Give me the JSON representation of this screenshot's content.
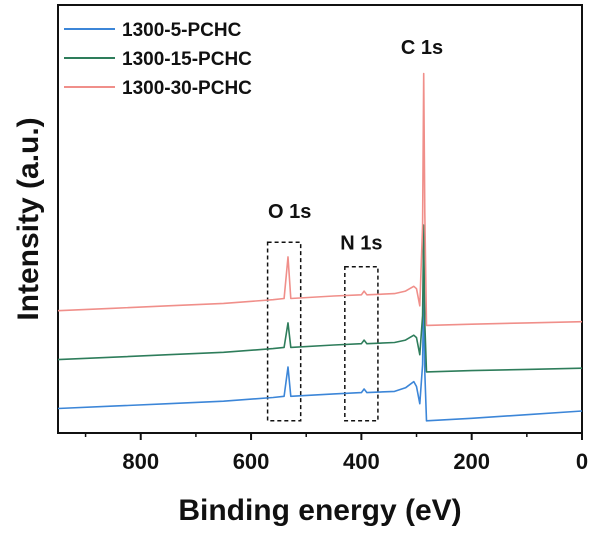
{
  "chart_data": {
    "type": "line",
    "title": "",
    "xlabel": "Binding energy (eV)",
    "ylabel": "Intensity (a.u.)",
    "xlim": [
      950,
      0
    ],
    "x_reversed": true,
    "y_ticks_shown": false,
    "grid": false,
    "legend_position": "top-left",
    "x_ticks": [
      {
        "value": 800,
        "label": "800"
      },
      {
        "value": 600,
        "label": "600"
      },
      {
        "value": 400,
        "label": "400"
      },
      {
        "value": 200,
        "label": "200"
      },
      {
        "value": 0,
        "label": "0"
      }
    ],
    "series": [
      {
        "name": "1300-5-PCHC",
        "color": "#3c86d8",
        "values": [
          [
            950,
            0.1
          ],
          [
            850,
            0.11
          ],
          [
            750,
            0.12
          ],
          [
            650,
            0.13
          ],
          [
            560,
            0.145
          ],
          [
            540,
            0.15
          ],
          [
            533,
            0.27
          ],
          [
            528,
            0.15
          ],
          [
            450,
            0.16
          ],
          [
            400,
            0.165
          ],
          [
            395,
            0.18
          ],
          [
            390,
            0.165
          ],
          [
            340,
            0.17
          ],
          [
            320,
            0.185
          ],
          [
            305,
            0.21
          ],
          [
            300,
            0.19
          ],
          [
            294,
            0.12
          ],
          [
            289,
            0.28
          ],
          [
            287,
            0.6
          ],
          [
            285,
            0.25
          ],
          [
            282,
            0.05
          ],
          [
            200,
            0.06
          ],
          [
            100,
            0.075
          ],
          [
            0,
            0.09
          ]
        ]
      },
      {
        "name": "1300-15-PCHC",
        "color": "#2e7d5b",
        "values": [
          [
            950,
            0.3
          ],
          [
            850,
            0.31
          ],
          [
            750,
            0.32
          ],
          [
            650,
            0.33
          ],
          [
            560,
            0.345
          ],
          [
            540,
            0.35
          ],
          [
            533,
            0.45
          ],
          [
            528,
            0.35
          ],
          [
            450,
            0.36
          ],
          [
            400,
            0.365
          ],
          [
            395,
            0.38
          ],
          [
            390,
            0.365
          ],
          [
            340,
            0.37
          ],
          [
            320,
            0.38
          ],
          [
            305,
            0.4
          ],
          [
            300,
            0.39
          ],
          [
            294,
            0.32
          ],
          [
            289,
            0.48
          ],
          [
            287,
            0.85
          ],
          [
            285,
            0.45
          ],
          [
            282,
            0.25
          ],
          [
            200,
            0.255
          ],
          [
            100,
            0.26
          ],
          [
            0,
            0.265
          ]
        ]
      },
      {
        "name": "1300-30-PCHC",
        "color": "#f08f8a",
        "values": [
          [
            950,
            0.5
          ],
          [
            850,
            0.51
          ],
          [
            750,
            0.52
          ],
          [
            650,
            0.53
          ],
          [
            560,
            0.545
          ],
          [
            540,
            0.55
          ],
          [
            533,
            0.72
          ],
          [
            528,
            0.55
          ],
          [
            450,
            0.56
          ],
          [
            400,
            0.565
          ],
          [
            395,
            0.58
          ],
          [
            390,
            0.565
          ],
          [
            340,
            0.57
          ],
          [
            320,
            0.58
          ],
          [
            305,
            0.6
          ],
          [
            300,
            0.59
          ],
          [
            294,
            0.52
          ],
          [
            289,
            0.85
          ],
          [
            287,
            1.47
          ],
          [
            285,
            0.9
          ],
          [
            282,
            0.44
          ],
          [
            200,
            0.445
          ],
          [
            100,
            0.45
          ],
          [
            0,
            0.455
          ]
        ]
      }
    ],
    "annotations": [
      {
        "text": "C 1s",
        "x": 290,
        "y": 1.55
      },
      {
        "text": "O 1s",
        "x": 530,
        "y": 0.88
      },
      {
        "text": "N 1s",
        "x": 400,
        "y": 0.75
      }
    ],
    "boxes": [
      {
        "x_from": 570,
        "x_to": 510,
        "y_from": 0.05,
        "y_to": 0.78
      },
      {
        "x_from": 430,
        "x_to": 370,
        "y_from": 0.05,
        "y_to": 0.68
      }
    ]
  }
}
